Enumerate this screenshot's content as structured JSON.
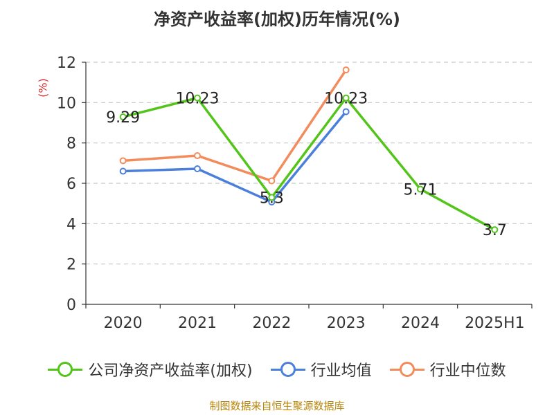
{
  "chart_data": {
    "type": "line",
    "title": "净资产收益率(加权)历年情况(%)",
    "ylabel": "(%)",
    "xlabel": "",
    "categories": [
      "2020",
      "2021",
      "2022",
      "2023",
      "2024",
      "2025H1"
    ],
    "ylim": [
      0,
      12
    ],
    "yticks": [
      0,
      2,
      4,
      6,
      8,
      10,
      12
    ],
    "grid": true,
    "legend_position": "bottom",
    "series": [
      {
        "name": "公司净资产收益率(加权)",
        "color": "#52c41a",
        "values": [
          9.29,
          10.23,
          5.3,
          10.23,
          5.71,
          3.7
        ],
        "labels": [
          "9.29",
          "10.23",
          "5.3",
          "10.23",
          "5.71",
          "3.7"
        ]
      },
      {
        "name": "行业均值",
        "color": "#4a7fdb",
        "values": [
          6.6,
          6.72,
          5.07,
          9.55,
          null,
          null
        ]
      },
      {
        "name": "行业中位数",
        "color": "#f28c5c",
        "values": [
          7.12,
          7.37,
          6.12,
          11.62,
          null,
          null
        ]
      }
    ]
  },
  "source": "制图数据来自恒生聚源数据库"
}
